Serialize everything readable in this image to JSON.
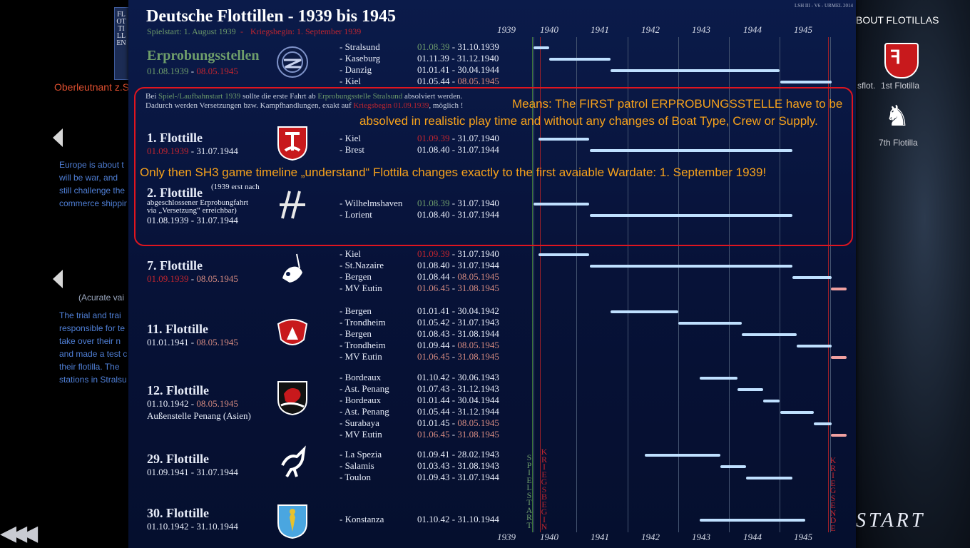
{
  "background": {
    "side_tab_label": "FLOTTILLEN",
    "user_rank": "Oberleutnant z.S",
    "left_text_1": [
      "Europe is about t",
      "will be war, and",
      "still challenge the",
      "commerce shipping"
    ],
    "left_caption": "(Acurate vai",
    "left_text_2": [
      "The trial and trai",
      "responsible for te",
      "take over their n",
      "and made a test c",
      "their flotilla. The",
      "stations in Stralsur"
    ],
    "back_arrows": "◀◀◀",
    "about_flotillas": "BOUT FLOTILLAS",
    "right_caption_1": "sflot.",
    "right_caption_2": "1st Flotilla",
    "right_caption_3": "7th Flotilla",
    "start_label": "START"
  },
  "panel": {
    "title": "Deutsche Flottillen - 1939 bis 1945",
    "meta": "LSH III -  V6 - URMEL 2014",
    "subtitle_start": "Spielstart:  1. August 1939",
    "subtitle_dash": " - ",
    "subtitle_war": "Kriegsbegin: 1. September 1939",
    "timeline_years": [
      "1939",
      "1940",
      "1941",
      "1942",
      "1943",
      "1944",
      "1945"
    ],
    "spielstart_label": "SPIELSTART",
    "kriegsbegin_label": "KRIEGSBEGIN",
    "kriegsende_label": "KRIEGSENDE",
    "info_line1_a": "Bei ",
    "info_line1_b": "Spiel-/Laufbahnstart 1939",
    "info_line1_c": " sollte die erste Fahrt ab ",
    "info_line1_d": "Erprobungsstelle Stralsund",
    "info_line1_e": " absolviert werden.",
    "info_line2_a": "Dadurch werden Versetzungen bzw. Kampfhandlungen, exakt auf ",
    "info_line2_b": "Kriegsbegin 01.09.1939",
    "info_line2_c": ", möglich !"
  },
  "callout": {
    "line1": "Means: The FIRST patrol ERPROBUNGSSTELLE have to be",
    "line2": "absolved in realistic play time and without any changes of Boat Type, Crew or Supply.",
    "line3": "Only then SH3 game timeline „understand“ Flottila changes exactly to the first avaiable Wardate: 1. September 1939!"
  },
  "flotillas": [
    {
      "name": "Erprobungsstellen",
      "date_start": "01.08.1939",
      "date_sep": " - ",
      "date_end": "08.05.1945",
      "emblem": "erprobung-emblem",
      "stations": [
        {
          "loc": "- Stralsund",
          "from": "01.08.39",
          "to": "31.10.1939"
        },
        {
          "loc": "- Kaseburg",
          "from": "01.11.39",
          "to": "31.12.1940"
        },
        {
          "loc": "- Danzig",
          "from": "01.01.41",
          "to": "30.04.1944"
        },
        {
          "loc": "- Kiel",
          "from": "01.05.44",
          "to": "08.05.1945"
        }
      ]
    },
    {
      "name": "1. Flottille",
      "date_start": "01.09.1939",
      "date_sep": " - ",
      "date_end": "31.07.1944",
      "emblem": "flotilla-1-emblem",
      "stations": [
        {
          "loc": "- Kiel",
          "from": "01.09.39",
          "to": "31.07.1940"
        },
        {
          "loc": "- Brest",
          "from": "01.08.40",
          "to": "31.07.1944"
        }
      ]
    },
    {
      "name": "2. Flottille",
      "note": [
        "(1939 erst nach",
        "abgeschlossener  Erprobungfahrt",
        "via „Versetzung“ erreichbar)"
      ],
      "date_start": "01.08.1939",
      "date_sep": " - ",
      "date_end": "31.07.1944",
      "emblem": "flotilla-2-emblem",
      "stations": [
        {
          "loc": "- Wilhelmshaven",
          "from": "01.08.39",
          "to": "31.07.1940"
        },
        {
          "loc": "- Lorient",
          "from": "01.08.40",
          "to": "31.07.1944"
        }
      ]
    },
    {
      "name": "7. Flottille",
      "date_start": "01.09.1939",
      "date_sep": " - ",
      "date_end": "08.05.1945",
      "emblem": "flotilla-7-emblem",
      "stations": [
        {
          "loc": "- Kiel",
          "from": "01.09.39",
          "to": "31.07.1940"
        },
        {
          "loc": "- St.Nazaire",
          "from": "01.08.40",
          "to": "31.07.1944"
        },
        {
          "loc": "- Bergen",
          "from": "01.08.44",
          "to": "08.05.1945"
        },
        {
          "loc": "- MV Eutin",
          "from": "01.06.45",
          "to": "31.08.1945"
        }
      ]
    },
    {
      "name": "11. Flottille",
      "date_start": "01.01.1941",
      "date_sep": " - ",
      "date_end": "08.05.1945",
      "emblem": "flotilla-11-emblem",
      "stations": [
        {
          "loc": "- Bergen",
          "from": "01.01.41",
          "to": "30.04.1942"
        },
        {
          "loc": "- Trondheim",
          "from": "01.05.42",
          "to": "31.07.1943"
        },
        {
          "loc": "- Bergen",
          "from": "01.08.43",
          "to": "31.08.1944"
        },
        {
          "loc": "- Trondheim",
          "from": "01.09.44",
          "to": "08.05.1945"
        },
        {
          "loc": "- MV Eutin",
          "from": "01.06.45",
          "to": "31.08.1945"
        }
      ]
    },
    {
      "name": "12. Flottille",
      "date_start": "01.10.1942",
      "date_sep": " - ",
      "date_end": "08.05.1945",
      "extra": "Außenstelle Penang (Asien)",
      "emblem": "flotilla-12-emblem",
      "stations": [
        {
          "loc": "- Bordeaux",
          "from": "01.10.42",
          "to": "30.06.1943"
        },
        {
          "loc": "- Ast. Penang",
          "from": "01.07.43",
          "to": "31.12.1943"
        },
        {
          "loc": "- Bordeaux",
          "from": "01.01.44",
          "to": "30.04.1944"
        },
        {
          "loc": "- Ast. Penang",
          "from": "01.05.44",
          "to": "31.12.1944"
        },
        {
          "loc": "- Surabaya",
          "from": "01.01.45",
          "to": "08.05.1945"
        },
        {
          "loc": "- MV Eutin",
          "from": "01.06.45",
          "to": "31.08.1945"
        }
      ]
    },
    {
      "name": "29. Flottille",
      "date_start": "01.09.1941",
      "date_sep": " - ",
      "date_end": "31.07.1944",
      "emblem": "flotilla-29-emblem",
      "stations": [
        {
          "loc": "- La Spezia",
          "from": "01.09.41",
          "to": "28.02.1943"
        },
        {
          "loc": "- Salamis",
          "from": "01.03.43",
          "to": "31.08.1943"
        },
        {
          "loc": "- Toulon",
          "from": "01.09.43",
          "to": "31.07.1944"
        }
      ]
    },
    {
      "name": "30. Flottille",
      "date_start": "01.10.1942",
      "date_sep": " - ",
      "date_end": "31.10.1944",
      "emblem": "flotilla-30-emblem",
      "stations": [
        {
          "loc": "- Konstanza",
          "from": "01.10.42",
          "to": "31.10.1944"
        }
      ]
    }
  ],
  "colors": {
    "accent_green": "#6d9b6a",
    "accent_red": "#c0252f",
    "end_pink": "#d48a80",
    "bar": "#bfe0ff",
    "callout": "#e0151f",
    "callout_text": "#f7a21b"
  }
}
